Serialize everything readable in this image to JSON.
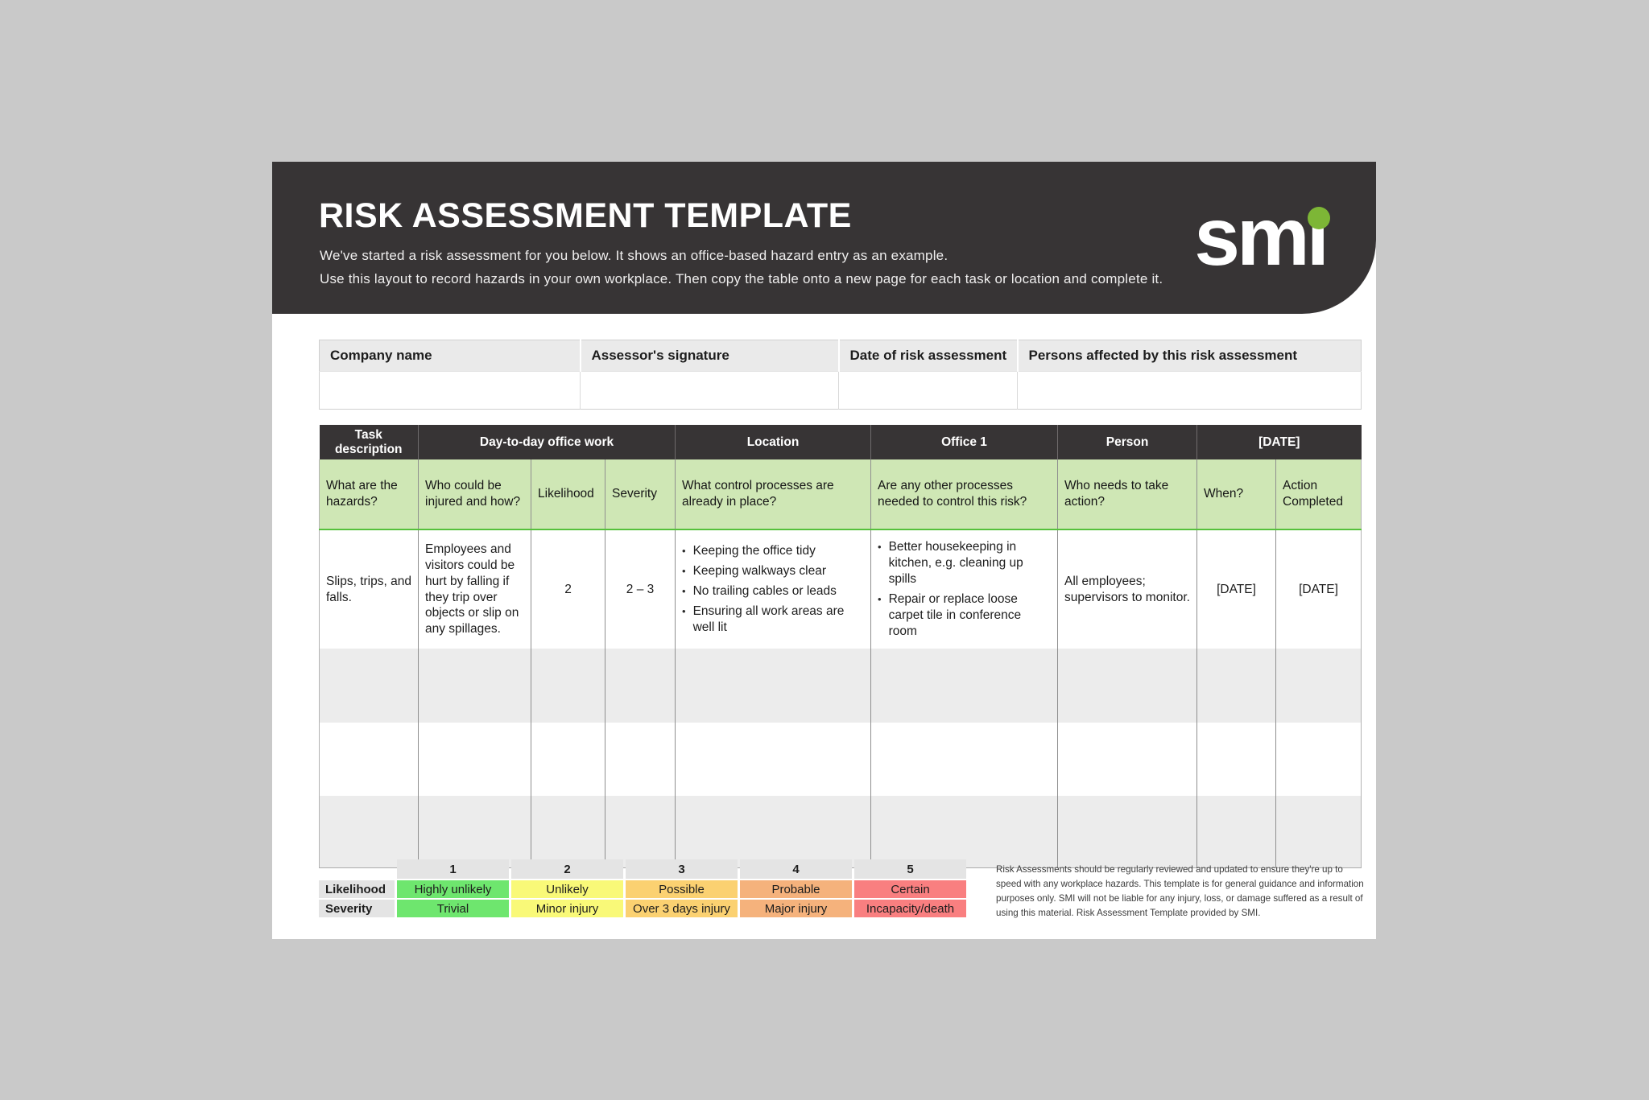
{
  "colors": {
    "band_dark": "#373435",
    "brand_green": "#7db636",
    "table_header_green": "#cfe7b5",
    "green_accent_line": "#56c13c",
    "scale_colors": [
      "#6ee66e",
      "#f9f978",
      "#fbd171",
      "#f5b27c",
      "#f97f80"
    ]
  },
  "header": {
    "title": "RISK ASSESSMENT TEMPLATE",
    "subtitle_line1": "We've started a risk assessment for you below. It shows an office-based hazard entry as an example.",
    "subtitle_line2": "Use this layout to record hazards in your own workplace. Then copy the table onto a new page for each task or location and complete it.",
    "logo_text": "smı"
  },
  "info_table": {
    "headers": [
      "Company name",
      "Assessor's signature",
      "Date of risk assessment",
      "Persons affected by this risk assessment"
    ]
  },
  "main_table": {
    "group_headers": [
      "Task description",
      "Day-to-day office work",
      "Location",
      "Office 1",
      "Person",
      "[DATE]"
    ],
    "column_headers": [
      "What are the hazards?",
      "Who could be injured and how?",
      "Likelihood",
      "Severity",
      "What control processes are already in place?",
      "Are any other processes needed to control this risk?",
      "Who needs to take action?",
      "When?",
      "Action Completed"
    ],
    "example_row": {
      "hazards": "Slips, trips, and falls.",
      "who_injured": "Employees and visitors could be hurt by falling if they trip over objects or slip on any spillages.",
      "likelihood": "2",
      "severity": "2 – 3",
      "controls_in_place": [
        "Keeping the office tidy",
        "Keeping walkways clear",
        "No trailing cables or leads",
        "Ensuring all work areas are well lit"
      ],
      "other_processes": [
        "Better housekeeping in kitchen, e.g. cleaning up spills",
        "Repair or replace loose carpet tile in conference room"
      ],
      "who_action": "All employees; supervisors to monitor.",
      "when": "[DATE]",
      "action_completed": "[DATE]"
    }
  },
  "legend": {
    "scale_headers": [
      "1",
      "2",
      "3",
      "4",
      "5"
    ],
    "rows": [
      {
        "label": "Likelihood",
        "values": [
          "Highly unlikely",
          "Unlikely",
          "Possible",
          "Probable",
          "Certain"
        ]
      },
      {
        "label": "Severity",
        "values": [
          "Trivial",
          "Minor injury",
          "Over 3 days injury",
          "Major injury",
          "Incapacity/death"
        ]
      }
    ]
  },
  "disclaimer": "Risk Assessments should be regularly reviewed and updated to ensure they're up to speed with any workplace hazards. This template is for general guidance and information purposes only. SMI will not be liable for any injury, loss, or damage suffered as a result of using this material. Risk Assessment Template provided by SMI."
}
